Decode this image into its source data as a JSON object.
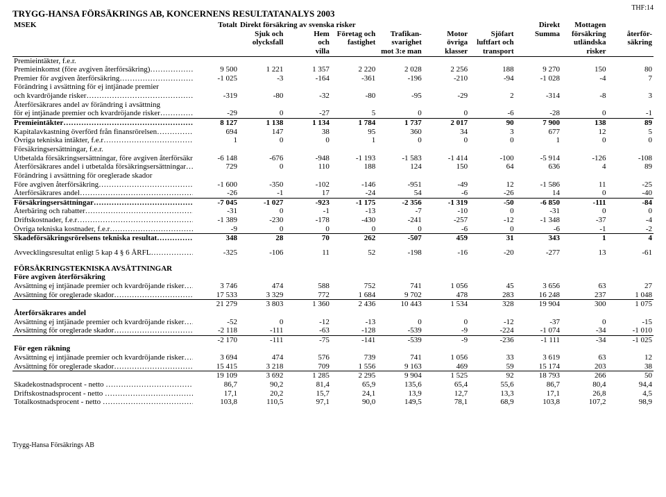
{
  "page_code": "THF:14",
  "title": "TRYGG-HANSA FÖRSÄKRINGS AB, KONCERNENS RESULTATANALYS 2003",
  "footer": "Trygg-Hansa Försäkrings AB",
  "header": {
    "unit": "MSEK",
    "row1": [
      "Totalt",
      "Direkt försäkring av svenska risker",
      "",
      "",
      "",
      "",
      "",
      "",
      "Direkt",
      "Mottagen"
    ],
    "row2": [
      "",
      "Sjuk och",
      "Hem",
      "Företag och",
      "Trafikan-",
      "Motor",
      "Sjöfart",
      "Summa",
      "försäkring",
      "återför-"
    ],
    "row3": [
      "",
      "olycksfall",
      "och",
      "fastighet",
      "svarighet",
      "övriga",
      "luftfart och",
      "",
      "utländska",
      "säkring"
    ],
    "row4": [
      "",
      "",
      "villa",
      "",
      "mot 3:e man",
      "klasser",
      "transport",
      "",
      "risker",
      ""
    ]
  },
  "rows": [
    {
      "label": "Premieintäkter, f.e.r.",
      "vals": [
        "",
        "",
        "",
        "",
        "",
        "",
        "",
        "",
        "",
        ""
      ]
    },
    {
      "label": "Premieinkomst (före avgiven återförsäkring)……………….",
      "vals": [
        "9 500",
        "1 221",
        "1 357",
        "2 220",
        "2 028",
        "2 256",
        "188",
        "9 270",
        "150",
        "80"
      ]
    },
    {
      "label": "Premier för avgiven återförsäkring…………………………..",
      "vals": [
        "-1 025",
        "-3",
        "-164",
        "-361",
        "-196",
        "-210",
        "-94",
        "-1 028",
        "-4",
        "7"
      ]
    },
    {
      "label": "Förändring i avsättning för ej intjänade premier",
      "vals": [
        "",
        "",
        "",
        "",
        "",
        "",
        "",
        "",
        "",
        ""
      ]
    },
    {
      "label": "och kvardröjande risker………………………………………",
      "vals": [
        "-319",
        "-80",
        "-32",
        "-80",
        "-95",
        "-29",
        "2",
        "-314",
        "-8",
        "3"
      ]
    },
    {
      "label": "Återförsäkrares andel av förändring i avsättning",
      "vals": [
        "",
        "",
        "",
        "",
        "",
        "",
        "",
        "",
        "",
        ""
      ]
    },
    {
      "label": "för ej intjänade premier och kvardröjande risker……………..",
      "vals": [
        "-29",
        "0",
        "-27",
        "5",
        "0",
        "0",
        "-6",
        "-28",
        "0",
        "-1"
      ]
    },
    {
      "label": "Premieintäkter…………………………………………………",
      "vals": [
        "8 127",
        "1 138",
        "1 134",
        "1 784",
        "1 737",
        "2 017",
        "90",
        "7 900",
        "138",
        "89"
      ],
      "bold": true,
      "lineAbove": true
    },
    {
      "label": "Kapitalavkastning överförd från finansrörelsen……………….",
      "vals": [
        "694",
        "147",
        "38",
        "95",
        "360",
        "34",
        "3",
        "677",
        "12",
        "5"
      ]
    },
    {
      "label": "Övriga tekniska intäkter, f.e.r……………………………….",
      "vals": [
        "1",
        "0",
        "0",
        "1",
        "0",
        "0",
        "0",
        "1",
        "0",
        "0"
      ]
    },
    {
      "label": "Försäkringsersättningar, f.e.r.",
      "vals": [
        "",
        "",
        "",
        "",
        "",
        "",
        "",
        "",
        "",
        ""
      ]
    },
    {
      "label": "Utbetalda försäkringsersättningar, före avgiven återförsäkring",
      "vals": [
        "-6 148",
        "-676",
        "-948",
        "-1 193",
        "-1 583",
        "-1 414",
        "-100",
        "-5 914",
        "-126",
        "-108"
      ]
    },
    {
      "label": "Återförsäkrares andel i utbetalda försäkringsersättningar…….",
      "vals": [
        "729",
        "0",
        "110",
        "188",
        "124",
        "150",
        "64",
        "636",
        "4",
        "89"
      ]
    },
    {
      "label": "Förändring i avsättning för oreglerade skador",
      "vals": [
        "",
        "",
        "",
        "",
        "",
        "",
        "",
        "",
        "",
        ""
      ]
    },
    {
      "label": "Före avgiven återförsäkring……………………………………",
      "vals": [
        "-1 600",
        "-350",
        "-102",
        "-146",
        "-951",
        "-49",
        "12",
        "-1 586",
        "11",
        "-25"
      ]
    },
    {
      "label": "Återförsäkrares andel…………………………………………..",
      "vals": [
        "-26",
        "-1",
        "17",
        "-24",
        "54",
        "-6",
        "-26",
        "14",
        "0",
        "-40"
      ]
    },
    {
      "label": "Försäkringsersättningar………………………………………..",
      "vals": [
        "-7 045",
        "-1 027",
        "-923",
        "-1 175",
        "-2 356",
        "-1 319",
        "-50",
        "-6 850",
        "-111",
        "-84"
      ],
      "bold": true,
      "lineAbove": true
    },
    {
      "label": "Återbäring och rabatter…………………………………………",
      "vals": [
        "-31",
        "0",
        "-1",
        "-13",
        "-7",
        "-10",
        "0",
        "-31",
        "0",
        "0"
      ]
    },
    {
      "label": "Driftskostnader, f.e.r……………………………………………",
      "vals": [
        "-1 389",
        "-230",
        "-178",
        "-430",
        "-241",
        "-257",
        "-12",
        "-1 348",
        "-37",
        "-4"
      ]
    },
    {
      "label": "Övriga tekniska kostnader, f.e.r………………………………..",
      "vals": [
        "-9",
        "0",
        "0",
        "0",
        "0",
        "-6",
        "0",
        "-6",
        "-1",
        "-2"
      ]
    },
    {
      "label": "Skadeförsäkringsrörelsens tekniska resultat…………………",
      "vals": [
        "348",
        "28",
        "70",
        "262",
        "-507",
        "459",
        "31",
        "343",
        "1",
        "4"
      ],
      "bold": true,
      "lineAbove": true
    },
    {
      "spacer": true
    },
    {
      "label": "Avvecklingsresultat enligt 5 kap 4 § 6 ÅRFL………………………………..",
      "vals": [
        "-325",
        "-106",
        "11",
        "52",
        "-198",
        "-16",
        "-20",
        "-277",
        "13",
        "-61"
      ]
    }
  ],
  "section2_title": "FÖRSÄKRINGSTEKNISKA AVSÄTTNINGAR",
  "rows2": [
    {
      "label": "Före avgiven återförsäkring",
      "vals": [
        "",
        "",
        "",
        "",
        "",
        "",
        "",
        "",
        "",
        ""
      ],
      "sub": true
    },
    {
      "label": "Avsättning ej intjänade premier och kvardröjande risker………",
      "vals": [
        "3 746",
        "474",
        "588",
        "752",
        "741",
        "1 056",
        "45",
        "3 656",
        "63",
        "27"
      ]
    },
    {
      "label": "Avsättning för oreglerade skador……………………………...",
      "vals": [
        "17 533",
        "3 329",
        "772",
        "1 684",
        "9 702",
        "478",
        "283",
        "16 248",
        "237",
        "1 048"
      ]
    },
    {
      "label": "",
      "vals": [
        "21 279",
        "3 803",
        "1 360",
        "2 436",
        "10 443",
        "1 534",
        "328",
        "19 904",
        "300",
        "1 075"
      ],
      "lineAbove": true
    },
    {
      "label": "Återförsäkrares andel",
      "vals": [
        "",
        "",
        "",
        "",
        "",
        "",
        "",
        "",
        "",
        ""
      ],
      "sub": true
    },
    {
      "label": "Avsättning ej intjänade premier och kvardröjande risker………",
      "vals": [
        "-52",
        "0",
        "-12",
        "-13",
        "0",
        "0",
        "-12",
        "-37",
        "0",
        "-15"
      ]
    },
    {
      "label": "Avsättning för oreglerade skador……………………………...",
      "vals": [
        "-2 118",
        "-111",
        "-63",
        "-128",
        "-539",
        "-9",
        "-224",
        "-1 074",
        "-34",
        "-1 010"
      ]
    },
    {
      "label": "",
      "vals": [
        "-2 170",
        "-111",
        "-75",
        "-141",
        "-539",
        "-9",
        "-236",
        "-1 111",
        "-34",
        "-1 025"
      ],
      "lineAbove": true
    },
    {
      "label": "För egen räkning",
      "vals": [
        "",
        "",
        "",
        "",
        "",
        "",
        "",
        "",
        "",
        ""
      ],
      "sub": true
    },
    {
      "label": "Avsättning ej intjänade premier och kvardröjande risker………",
      "vals": [
        "3 694",
        "474",
        "576",
        "739",
        "741",
        "1 056",
        "33",
        "3 619",
        "63",
        "12"
      ]
    },
    {
      "label": "Avsättning för oreglerade skador……………………………...",
      "vals": [
        "15 415",
        "3 218",
        "709",
        "1 556",
        "9 163",
        "469",
        "59",
        "15 174",
        "203",
        "38"
      ]
    },
    {
      "label": "",
      "vals": [
        "19 109",
        "3 692",
        "1 285",
        "2 295",
        "9 904",
        "1 525",
        "92",
        "18 793",
        "266",
        "50"
      ],
      "lineAbove": true
    },
    {
      "label": "Skadekostnadsprocent - netto …………………………………",
      "vals": [
        "86,7",
        "90,2",
        "81,4",
        "65,9",
        "135,6",
        "65,4",
        "55,6",
        "86,7",
        "80,4",
        "94,4"
      ]
    },
    {
      "label": "Driftskostnadsprocent - netto …………………………………",
      "vals": [
        "17,1",
        "20,2",
        "15,7",
        "24,1",
        "13,9",
        "12,7",
        "13,3",
        "17,1",
        "26,8",
        "4,5"
      ]
    },
    {
      "label": "Totalkostnadsprocent - netto ………………………………….",
      "vals": [
        "103,8",
        "110,5",
        "97,1",
        "90,0",
        "149,5",
        "78,1",
        "68,9",
        "103,8",
        "107,2",
        "98,9"
      ]
    }
  ]
}
